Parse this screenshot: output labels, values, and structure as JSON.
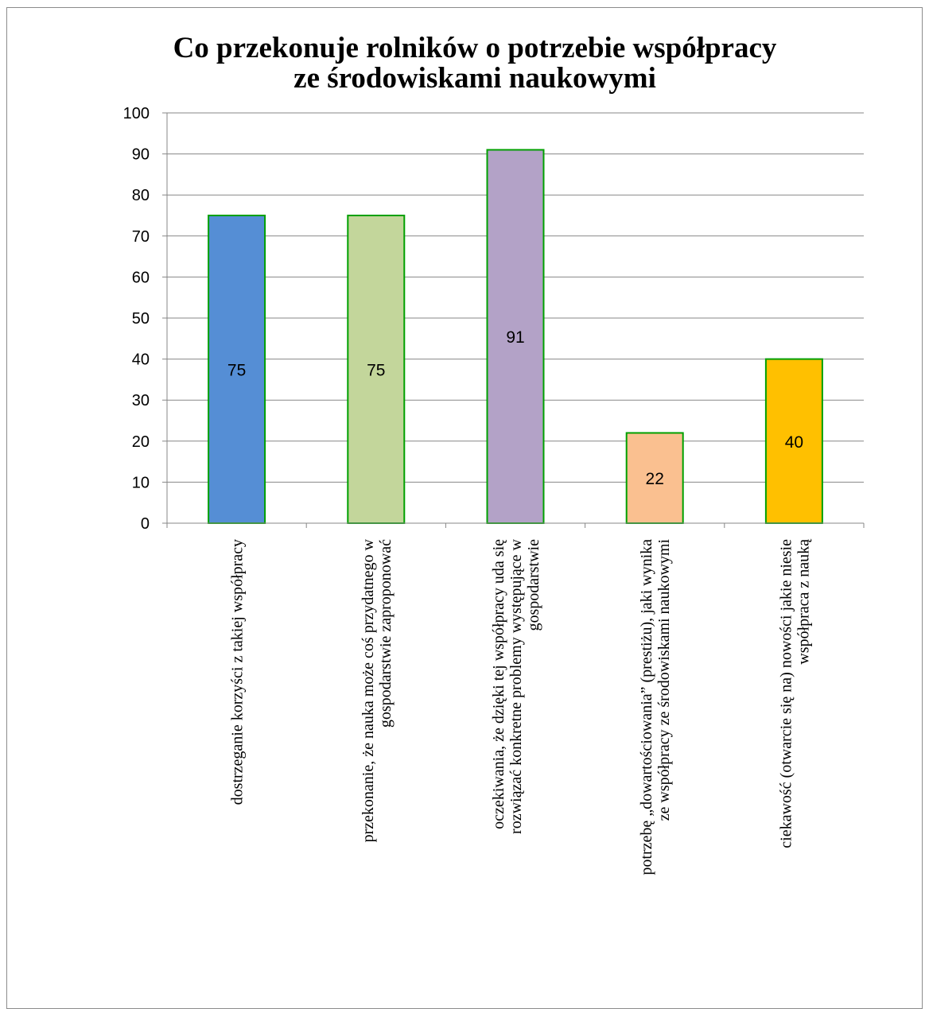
{
  "chart_data": {
    "type": "bar",
    "title": "Co przekonuje rolników o potrzebie współpracy ze środowiskami naukowymi",
    "title_lines": [
      "Co przekonuje rolników o potrzebie współpracy",
      "ze środowiskami naukowymi"
    ],
    "xlabel": "",
    "ylabel": "",
    "ylim": [
      0,
      100
    ],
    "yticks": [
      0,
      10,
      20,
      30,
      40,
      50,
      60,
      70,
      80,
      90,
      100
    ],
    "grid": true,
    "categories": [
      "dostrzeganie korzyści z takiej współpracy",
      "przekonanie, że nauka może coś przydatnego w gospodarstwie zaproponować",
      "oczekiwania, że dzięki tej współpracy uda się rozwiązać konkretne problemy występujące w gospodarstwie",
      "potrzebę „dowartościowania” (prestiżu), jaki wynika ze współpracy ze środowiskami naukowymi",
      "ciekawość (otwarcie się na) nowości jakie niesie współpraca z nauką"
    ],
    "category_lines": [
      [
        "dostrzeganie korzyści z takiej współpracy"
      ],
      [
        "przekonanie, że nauka może coś przydatnego w",
        "gospodarstwie zaproponować"
      ],
      [
        "oczekiwania, że dzięki tej współpracy uda się",
        "rozwiązać konkretne problemy występujące w",
        "gospodarstwie"
      ],
      [
        "potrzebę „dowartościowania” (prestiżu), jaki wynika",
        "ze współpracy ze środowiskami naukowymi"
      ],
      [
        "ciekawość (otwarcie się na) nowości jakie niesie",
        "współpraca z nauką"
      ]
    ],
    "values": [
      75,
      75,
      91,
      22,
      40
    ],
    "data_labels": [
      "75",
      "75",
      "91",
      "22",
      "40"
    ],
    "colors": [
      "#558ed5",
      "#c3d69b",
      "#b3a2c7",
      "#fac090",
      "#ffc000"
    ],
    "bar_border_color": "#00a000",
    "gridline_color": "#878787"
  }
}
